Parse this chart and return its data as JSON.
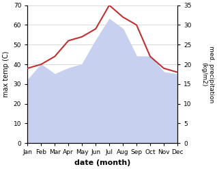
{
  "months": [
    "Jan",
    "Feb",
    "Mar",
    "Apr",
    "May",
    "Jun",
    "Jul",
    "Aug",
    "Sep",
    "Oct",
    "Nov",
    "Dec"
  ],
  "max_temp": [
    32,
    40,
    35,
    38,
    40,
    52,
    63,
    58,
    44,
    44,
    36,
    35
  ],
  "precipitation": [
    19,
    20,
    22,
    26,
    27,
    29,
    35,
    32,
    30,
    22,
    19,
    18
  ],
  "temp_fill_color": "#c8d0f0",
  "precip_color": "#c03030",
  "xlabel": "date (month)",
  "ylabel_left": "max temp (C)",
  "ylabel_right": "med. precipitation\n(kg/m2)",
  "ylim_left": [
    0,
    70
  ],
  "ylim_right": [
    0,
    35
  ],
  "yticks_left": [
    0,
    10,
    20,
    30,
    40,
    50,
    60,
    70
  ],
  "yticks_right": [
    0,
    5,
    10,
    15,
    20,
    25,
    30,
    35
  ]
}
